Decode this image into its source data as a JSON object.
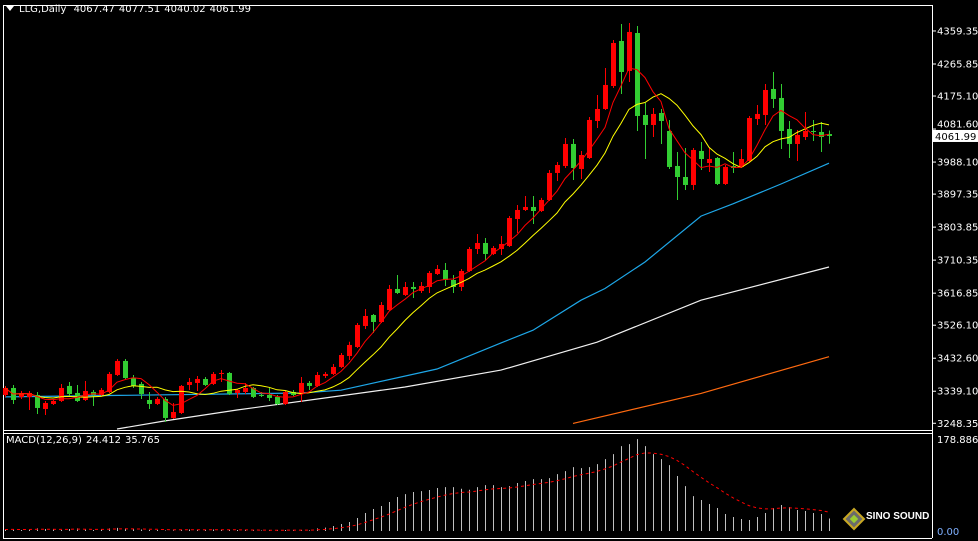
{
  "header": {
    "symbol": "LLG,Daily",
    "open": "4067.47",
    "high": "4077.51",
    "low": "4040.02",
    "close": "4061.99"
  },
  "macd_label": {
    "name": "MACD(12,26,9)",
    "macd": "24.412",
    "signal": "35.765"
  },
  "logo": {
    "text": "SINO SOUND"
  },
  "colors": {
    "background": "#000000",
    "up_candle": "#ff0000",
    "down_candle": "#32cd32",
    "ma_fast": "#ff0000",
    "ma_slow": "#ffff00",
    "ma_blue": "#1ea7e8",
    "ma_white": "#f0f0f0",
    "ma_orange": "#ff6a10",
    "macd_histogram": "#c0c0c0",
    "macd_signal": "#ff0000",
    "axis": "#ffffff"
  },
  "chart_data": [
    {
      "type": "candlestick",
      "title": "LLG,Daily",
      "ylim": [
        3229.3,
        4432.9
      ],
      "y_ticks": [
        "4359.35",
        "4265.85",
        "4175.10",
        "4081.60",
        "3988.10",
        "3897.35",
        "3803.85",
        "3710.35",
        "3616.85",
        "3526.10",
        "3432.60",
        "3339.10",
        "3248.35"
      ],
      "current_price": "4061.99",
      "ohlc": [
        [
          3328.5,
          3354.0,
          3322.9,
          3348.3
        ],
        [
          3348.3,
          3356.8,
          3303.0,
          3314.3
        ],
        [
          3322.9,
          3339.8,
          3317.2,
          3334.2
        ],
        [
          3322.9,
          3339.8,
          3286.0,
          3334.2
        ],
        [
          3328.5,
          3337.0,
          3274.7,
          3291.7
        ],
        [
          3288.8,
          3311.5,
          3271.9,
          3305.8
        ],
        [
          3303.0,
          3317.2,
          3300.2,
          3311.5
        ],
        [
          3311.5,
          3359.7,
          3308.7,
          3348.3
        ],
        [
          3354.0,
          3365.3,
          3325.7,
          3331.3
        ],
        [
          3334.2,
          3356.8,
          3308.7,
          3311.5
        ],
        [
          3314.3,
          3368.2,
          3311.5,
          3339.8
        ],
        [
          3337.0,
          3342.7,
          3297.3,
          3328.5
        ],
        [
          3328.5,
          3348.3,
          3325.7,
          3342.7
        ],
        [
          3337.0,
          3393.6,
          3334.2,
          3388.0
        ],
        [
          3385.1,
          3430.4,
          3382.3,
          3424.8
        ],
        [
          3424.8,
          3430.4,
          3373.8,
          3376.6
        ],
        [
          3376.6,
          3385.1,
          3348.3,
          3354.0
        ],
        [
          3359.7,
          3365.3,
          3317.2,
          3331.3
        ],
        [
          3314.3,
          3337.0,
          3288.8,
          3303.0
        ],
        [
          3303.0,
          3322.9,
          3300.2,
          3317.2
        ],
        [
          3317.2,
          3322.9,
          3252.1,
          3263.4
        ],
        [
          3263.4,
          3305.8,
          3260.6,
          3280.3
        ],
        [
          3277.5,
          3356.8,
          3274.7,
          3354.0
        ],
        [
          3356.8,
          3376.6,
          3342.7,
          3365.3
        ],
        [
          3362.5,
          3382.3,
          3339.8,
          3373.8
        ],
        [
          3373.8,
          3379.5,
          3354.0,
          3356.8
        ],
        [
          3359.7,
          3393.6,
          3356.8,
          3388.0
        ],
        [
          3388.0,
          3399.3,
          3365.3,
          3390.8
        ],
        [
          3390.8,
          3393.6,
          3328.5,
          3331.3
        ],
        [
          3334.2,
          3345.5,
          3320.0,
          3342.7
        ],
        [
          3337.0,
          3362.5,
          3331.3,
          3348.3
        ],
        [
          3348.3,
          3351.2,
          3320.0,
          3322.9
        ],
        [
          3328.5,
          3337.0,
          3322.9,
          3327.0
        ],
        [
          3328.5,
          3348.3,
          3311.5,
          3320.0
        ],
        [
          3322.9,
          3328.5,
          3300.2,
          3303.0
        ],
        [
          3303.0,
          3339.8,
          3300.2,
          3337.0
        ],
        [
          3337.0,
          3342.7,
          3325.7,
          3328.5
        ],
        [
          3334.2,
          3379.5,
          3308.7,
          3362.5
        ],
        [
          3362.5,
          3368.2,
          3342.7,
          3354.0
        ],
        [
          3354.0,
          3393.6,
          3351.2,
          3385.1
        ],
        [
          3382.3,
          3393.6,
          3376.6,
          3388.0
        ],
        [
          3388.0,
          3416.3,
          3385.1,
          3407.8
        ],
        [
          3407.8,
          3447.4,
          3404.9,
          3441.7
        ],
        [
          3438.9,
          3479.2,
          3427.6,
          3470.1
        ],
        [
          3464.4,
          3532.4,
          3461.6,
          3526.7
        ],
        [
          3523.9,
          3572.0,
          3515.4,
          3552.2
        ],
        [
          3555.0,
          3557.9,
          3504.0,
          3535.2
        ],
        [
          3535.2,
          3591.8,
          3532.4,
          3583.3
        ],
        [
          3569.2,
          3640.0,
          3566.4,
          3628.7
        ],
        [
          3628.7,
          3668.3,
          3614.5,
          3617.3
        ],
        [
          3611.7,
          3648.5,
          3608.8,
          3634.3
        ],
        [
          3634.3,
          3648.5,
          3603.2,
          3628.7
        ],
        [
          3623.0,
          3648.5,
          3617.3,
          3637.2
        ],
        [
          3634.3,
          3679.6,
          3617.3,
          3674.0
        ],
        [
          3671.1,
          3696.6,
          3668.3,
          3685.3
        ],
        [
          3682.5,
          3702.3,
          3637.2,
          3654.1
        ],
        [
          3654.1,
          3668.3,
          3617.3,
          3634.3
        ],
        [
          3634.3,
          3685.3,
          3623.0,
          3679.6
        ],
        [
          3679.6,
          3747.6,
          3676.8,
          3741.9
        ],
        [
          3741.9,
          3784.4,
          3727.8,
          3758.9
        ],
        [
          3758.9,
          3773.1,
          3710.8,
          3727.8
        ],
        [
          3727.8,
          3750.4,
          3724.9,
          3744.8
        ],
        [
          3741.9,
          3778.7,
          3724.9,
          3756.1
        ],
        [
          3750.4,
          3835.4,
          3747.6,
          3829.7
        ],
        [
          3826.9,
          3866.5,
          3787.2,
          3852.4
        ],
        [
          3852.4,
          3892.0,
          3849.5,
          3860.9
        ],
        [
          3860.9,
          3892.0,
          3812.7,
          3849.5
        ],
        [
          3849.5,
          3886.6,
          3846.7,
          3880.7
        ],
        [
          3880.7,
          3965.7,
          3877.9,
          3957.2
        ],
        [
          3957.2,
          3988.3,
          3934.5,
          3979.8
        ],
        [
          3977.0,
          4056.3,
          3971.3,
          4039.3
        ],
        [
          4039.3,
          4053.5,
          3937.3,
          3971.3
        ],
        [
          3968.5,
          4019.5,
          3940.2,
          4008.1
        ],
        [
          3999.6,
          4115.7,
          3996.8,
          4107.3
        ],
        [
          4104.4,
          4178.1,
          4084.6,
          4138.4
        ],
        [
          4138.4,
          4254.5,
          4135.6,
          4206.4
        ],
        [
          4203.5,
          4333.8,
          4197.9,
          4325.3
        ],
        [
          4331.0,
          4379.1,
          4180.9,
          4243.2
        ],
        [
          4246.0,
          4382.0,
          4214.9,
          4356.5
        ],
        [
          4353.6,
          4373.5,
          4076.1,
          4118.6
        ],
        [
          4121.4,
          4155.4,
          3996.8,
          4093.1
        ],
        [
          4093.1,
          4141.2,
          4059.1,
          4124.3
        ],
        [
          4127.1,
          4138.4,
          4039.3,
          4104.4
        ],
        [
          4076.1,
          4107.3,
          3968.5,
          3974.2
        ],
        [
          3977.0,
          4016.6,
          3880.7,
          3945.8
        ],
        [
          3945.8,
          4028.0,
          3909.0,
          3923.2
        ],
        [
          3923.2,
          4028.0,
          3909.0,
          4022.3
        ],
        [
          4019.5,
          4044.9,
          3965.7,
          3996.8
        ],
        [
          3985.5,
          4028.0,
          3960.0,
          3996.8
        ],
        [
          3999.6,
          4002.5,
          3923.2,
          3926.0
        ],
        [
          3926.0,
          3979.8,
          3923.2,
          3974.2
        ],
        [
          3977.0,
          4016.6,
          3957.2,
          3971.3
        ],
        [
          3974.2,
          4025.1,
          3971.3,
          3996.8
        ],
        [
          3991.2,
          4118.6,
          3988.3,
          4112.9
        ],
        [
          4110.1,
          4149.7,
          4093.1,
          4124.3
        ],
        [
          4121.4,
          4209.2,
          4093.1,
          4192.2
        ],
        [
          4195.1,
          4243.2,
          4141.2,
          4166.8
        ],
        [
          4169.6,
          4209.2,
          4025.1,
          4076.1
        ],
        [
          4081.8,
          4104.4,
          3999.6,
          4039.3
        ],
        [
          4039.3,
          4078.9,
          3991.2,
          4064.8
        ],
        [
          4059.1,
          4129.9,
          4050.6,
          4076.1
        ],
        [
          4076.1,
          4107.3,
          4047.8,
          4073.3
        ],
        [
          4073.3,
          4101.6,
          4016.6,
          4059.1
        ],
        [
          4067.47,
          4077.51,
          4040.02,
          4061.99
        ]
      ],
      "moving_averages": {
        "fast_period": 5,
        "slow_period": 10,
        "blue": [
          [
            0,
            3323
          ],
          [
            37,
            3334
          ],
          [
            42,
            3342
          ],
          [
            54,
            3402
          ],
          [
            62,
            3476
          ],
          [
            66,
            3512
          ],
          [
            72,
            3597
          ],
          [
            75,
            3630
          ],
          [
            80,
            3705
          ],
          [
            87,
            3835
          ],
          [
            91,
            3870
          ],
          [
            97,
            3926
          ],
          [
            103,
            3985
          ]
        ],
        "white": [
          [
            14,
            3232
          ],
          [
            20,
            3255
          ],
          [
            29,
            3286
          ],
          [
            41,
            3323
          ],
          [
            50,
            3351
          ],
          [
            62,
            3399
          ],
          [
            74,
            3478
          ],
          [
            87,
            3597
          ],
          [
            103,
            3691
          ]
        ],
        "orange": [
          [
            71,
            3248
          ],
          [
            87,
            3333
          ],
          [
            103,
            3437
          ]
        ]
      },
      "grid": false
    },
    {
      "type": "bar",
      "title": "MACD(12,26,9)",
      "ylim": [
        -13.6,
        190.5
      ],
      "y_ticks": [
        "178.886",
        "0.00"
      ],
      "signal_period": 9,
      "histogram": [
        3,
        4,
        2,
        3,
        5,
        4,
        3,
        2,
        4,
        5,
        3,
        2,
        3,
        5,
        6,
        5,
        4,
        3,
        2,
        2,
        1,
        1,
        2,
        3,
        3,
        2,
        3,
        2,
        2,
        2,
        2,
        1,
        1,
        1,
        1,
        2,
        2,
        2,
        1.3,
        5.2,
        6.5,
        9.7,
        13.6,
        17.5,
        25.2,
        35,
        42.7,
        48.5,
        56.3,
        66,
        71.8,
        75.7,
        77.6,
        79.6,
        83.5,
        85.4,
        85.4,
        82.2,
        80.2,
        85.4,
        89.3,
        89.3,
        85.4,
        87.3,
        93.2,
        97.1,
        100.9,
        100.9,
        102.9,
        110.6,
        116.5,
        124.2,
        122.3,
        124.2,
        130,
        139.8,
        149.5,
        165,
        168.9,
        178.6,
        165,
        149.5,
        139.8,
        128.1,
        106.8,
        87.3,
        67.9,
        60.2,
        52.4,
        44.6,
        33,
        27.2,
        23.3,
        21.4,
        27.2,
        35,
        44.6,
        50.5,
        46.6,
        40.8,
        38.8,
        35,
        33,
        24.4
      ]
    }
  ]
}
